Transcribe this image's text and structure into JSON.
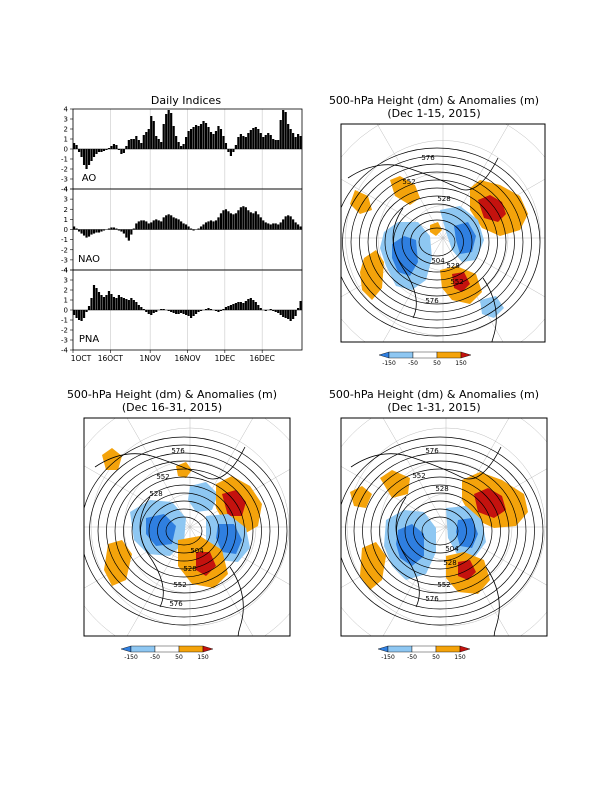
{
  "indices_panel": {
    "title": "Daily Indices",
    "y_ticks": [
      "4",
      "3",
      "2",
      "1",
      "0",
      "-1",
      "-2",
      "-3",
      "-4"
    ],
    "x_ticks": [
      "1OCT",
      "16OCT",
      "1NOV",
      "16NOV",
      "1DEC",
      "16DEC"
    ]
  },
  "maps": [
    {
      "title": "500-hPa Height (dm) & Anomalies (m)",
      "period": "(Dec 1-15, 2015)",
      "contour_labels": [
        "576",
        "552",
        "528",
        "528",
        "504",
        "552",
        "576"
      ]
    },
    {
      "title": "500-hPa Height (dm) & Anomalies (m)",
      "period": "(Dec 16-31, 2015)",
      "contour_labels": [
        "576",
        "552",
        "528",
        "504",
        "528",
        "552",
        "576"
      ]
    },
    {
      "title": "500-hPa Height (dm) & Anomalies (m)",
      "period": "(Dec 1-31, 2015)",
      "contour_labels": [
        "576",
        "552",
        "528",
        "504",
        "528",
        "552",
        "576"
      ]
    }
  ],
  "colorbar": {
    "labels": [
      "-150",
      "-50",
      "50",
      "150"
    ],
    "colors": [
      "#2f7fe0",
      "#8ec7f2",
      "#ffffff",
      "#f4a30b",
      "#c4120e"
    ]
  },
  "chart_data": {
    "type": "bar",
    "x_start": "1OCT2015",
    "x_end": "31DEC2015",
    "ylim": [
      -4,
      4
    ],
    "series": [
      {
        "name": "AO",
        "values": [
          0.6,
          0.4,
          -0.3,
          -0.8,
          -1.6,
          -2.0,
          -1.6,
          -1.2,
          -0.8,
          -0.5,
          -0.3,
          -0.3,
          -0.2,
          -0.1,
          0.1,
          0.3,
          0.5,
          0.4,
          -0.1,
          -0.5,
          -0.4,
          0.3,
          0.9,
          1.0,
          1.0,
          1.3,
          0.9,
          0.6,
          1.4,
          1.7,
          2.0,
          3.3,
          2.8,
          1.3,
          1.0,
          0.7,
          2.5,
          3.5,
          3.9,
          3.6,
          2.3,
          1.3,
          0.7,
          0.3,
          0.5,
          1.2,
          1.8,
          2.0,
          2.2,
          2.4,
          2.3,
          2.5,
          2.8,
          2.6,
          2.2,
          1.7,
          1.5,
          1.8,
          2.3,
          2.0,
          1.3,
          0.6,
          -0.3,
          -0.7,
          -0.3,
          0.4,
          1.2,
          1.5,
          1.3,
          1.2,
          1.6,
          1.9,
          2.1,
          2.2,
          2.0,
          1.6,
          1.2,
          1.4,
          1.6,
          1.4,
          1.0,
          0.9,
          0.9,
          2.9,
          3.9,
          3.7,
          2.5,
          2.0,
          1.6,
          1.2,
          1.5,
          1.3
        ]
      },
      {
        "name": "NAO",
        "values": [
          0.3,
          0.1,
          -0.2,
          -0.4,
          -0.6,
          -0.8,
          -0.7,
          -0.5,
          -0.4,
          -0.3,
          -0.3,
          -0.2,
          -0.1,
          0.0,
          0.1,
          0.2,
          0.2,
          0.1,
          -0.1,
          -0.2,
          -0.4,
          -0.8,
          -1.1,
          -0.5,
          0.1,
          0.6,
          0.8,
          0.9,
          0.9,
          0.8,
          0.6,
          0.7,
          0.9,
          1.0,
          0.9,
          0.8,
          1.2,
          1.4,
          1.5,
          1.4,
          1.2,
          1.1,
          1.0,
          0.8,
          0.6,
          0.5,
          0.3,
          0.1,
          -0.1,
          0.0,
          0.1,
          0.3,
          0.5,
          0.7,
          0.8,
          0.9,
          0.8,
          0.9,
          1.2,
          1.6,
          1.9,
          2.0,
          1.8,
          1.6,
          1.5,
          1.6,
          1.9,
          2.2,
          2.3,
          2.2,
          1.9,
          1.7,
          1.6,
          1.8,
          1.5,
          1.2,
          0.9,
          0.7,
          0.6,
          0.5,
          0.6,
          0.6,
          0.5,
          0.7,
          1.0,
          1.3,
          1.4,
          1.3,
          1.0,
          0.7,
          0.5,
          0.3
        ]
      },
      {
        "name": "PNA",
        "values": [
          -0.5,
          -0.8,
          -1.0,
          -1.1,
          -0.8,
          -0.2,
          0.4,
          1.2,
          2.5,
          2.2,
          1.8,
          1.5,
          1.3,
          1.5,
          1.9,
          1.6,
          1.3,
          1.2,
          1.5,
          1.3,
          1.2,
          1.1,
          1.0,
          1.2,
          1.0,
          0.8,
          0.5,
          0.3,
          0.1,
          -0.2,
          -0.4,
          -0.5,
          -0.3,
          -0.2,
          0.0,
          0.1,
          0.1,
          0.0,
          -0.1,
          -0.2,
          -0.3,
          -0.4,
          -0.4,
          -0.3,
          -0.4,
          -0.5,
          -0.6,
          -0.8,
          -0.6,
          -0.4,
          -0.2,
          -0.1,
          0.0,
          0.1,
          0.2,
          0.1,
          0.0,
          -0.1,
          -0.2,
          -0.1,
          0.1,
          0.3,
          0.4,
          0.5,
          0.6,
          0.7,
          0.8,
          0.8,
          0.7,
          0.9,
          1.1,
          1.2,
          1.0,
          0.8,
          0.5,
          0.2,
          0.0,
          -0.1,
          0.0,
          0.1,
          -0.1,
          -0.2,
          -0.3,
          -0.5,
          -0.7,
          -0.8,
          -0.9,
          -1.1,
          -0.9,
          -0.6,
          0.2,
          0.9
        ]
      }
    ]
  }
}
